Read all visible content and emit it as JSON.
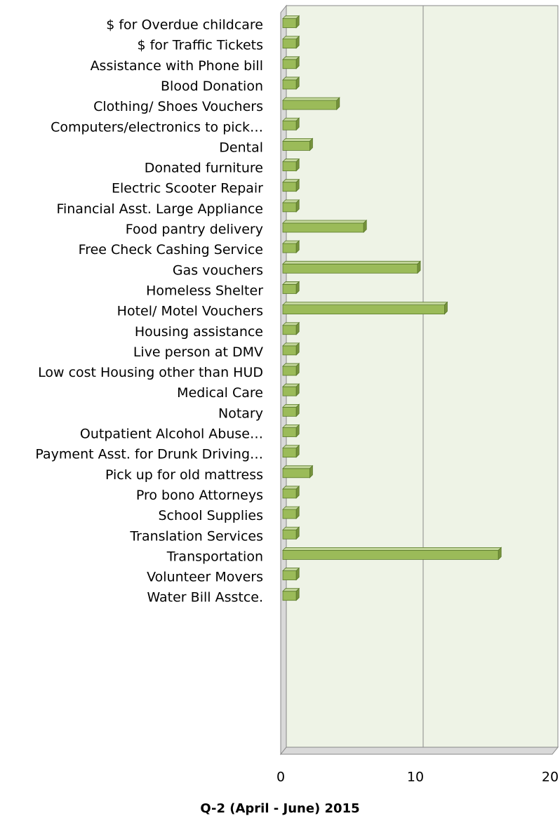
{
  "chart_data": {
    "type": "bar",
    "orientation": "horizontal",
    "title": "Q-2 (April - June) 2015",
    "categories": [
      "$ for Overdue childcare",
      "$ for Traffic Tickets",
      "Assistance with Phone bill",
      "Blood Donation",
      "Clothing/ Shoes Vouchers",
      "Computers/electronics to pick…",
      "Dental",
      "Donated furniture",
      "Electric Scooter Repair",
      "Financial Asst. Large Appliance",
      "Food pantry delivery",
      "Free Check Cashing Service",
      "Gas vouchers",
      "Homeless Shelter",
      "Hotel/ Motel Vouchers",
      "Housing assistance",
      "Live person at DMV",
      "Low cost Housing other than HUD",
      "Medical Care",
      "Notary",
      "Outpatient Alcohol Abuse…",
      "Payment Asst. for Drunk Driving…",
      "Pick up for old mattress",
      "Pro bono Attorneys",
      "School Supplies",
      "Translation Services",
      "Transportation",
      "Volunteer Movers",
      "Water Bill Asstce."
    ],
    "values": [
      1,
      1,
      1,
      1,
      4,
      1,
      2,
      1,
      1,
      1,
      6,
      1,
      10,
      1,
      12,
      1,
      1,
      1,
      1,
      1,
      1,
      1,
      2,
      1,
      1,
      1,
      16,
      1,
      1
    ],
    "color": "#9bbb59",
    "xlim": [
      0,
      20
    ],
    "xticks": [
      0,
      10,
      20
    ],
    "grid": true
  }
}
